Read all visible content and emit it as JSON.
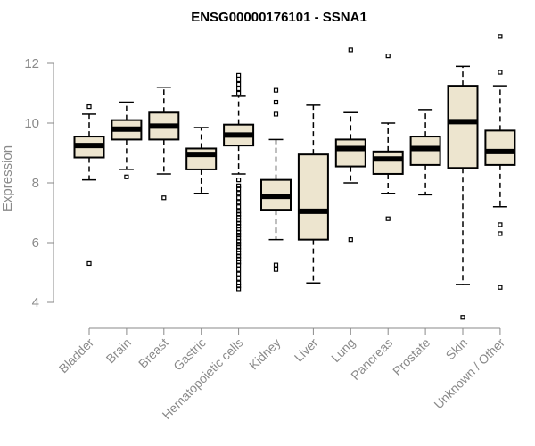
{
  "chart_data": {
    "type": "boxplot",
    "title": "ENSG00000176101 - SSNA1",
    "xlabel": "",
    "ylabel": "Expression",
    "ylim": [
      3.4,
      13.0
    ],
    "yticks": [
      4,
      6,
      8,
      10,
      12
    ],
    "box_fill": "#ede5cf",
    "categories": [
      "Bladder",
      "Brain",
      "Breast",
      "Gastric",
      "Hematopoietic cells",
      "Kidney",
      "Liver",
      "Lung",
      "Pancreas",
      "Prostate",
      "Skin",
      "Unknown / Other"
    ],
    "boxes": [
      {
        "name": "Bladder",
        "whislo": 8.1,
        "q1": 8.85,
        "med": 9.25,
        "q3": 9.55,
        "whishi": 10.3,
        "fliers": [
          10.55,
          5.3
        ]
      },
      {
        "name": "Brain",
        "whislo": 8.45,
        "q1": 9.45,
        "med": 9.8,
        "q3": 10.1,
        "whishi": 10.7,
        "fliers": [
          8.2
        ]
      },
      {
        "name": "Breast",
        "whislo": 8.3,
        "q1": 9.45,
        "med": 9.9,
        "q3": 10.35,
        "whishi": 11.2,
        "fliers": [
          7.5
        ]
      },
      {
        "name": "Gastric",
        "whislo": 7.65,
        "q1": 8.45,
        "med": 8.95,
        "q3": 9.15,
        "whishi": 9.85,
        "fliers": []
      },
      {
        "name": "Hematopoietic cells",
        "whislo": 8.3,
        "q1": 9.25,
        "med": 9.6,
        "q3": 9.95,
        "whishi": 10.9,
        "fliers": [
          11.6,
          11.45,
          11.3,
          11.15,
          11.0,
          8.1,
          7.9,
          7.8,
          7.65,
          7.5,
          7.35,
          7.2,
          7.05,
          6.95,
          6.85,
          6.75,
          6.65,
          6.55,
          6.45,
          6.35,
          6.25,
          6.15,
          6.05,
          5.95,
          5.85,
          5.75,
          5.65,
          5.55,
          5.45,
          5.35,
          5.25,
          5.1,
          4.95,
          4.8,
          4.65,
          4.55,
          4.45
        ]
      },
      {
        "name": "Kidney",
        "whislo": 6.1,
        "q1": 7.1,
        "med": 7.55,
        "q3": 8.1,
        "whishi": 9.45,
        "fliers": [
          11.1,
          10.7,
          10.3,
          5.25,
          5.1
        ]
      },
      {
        "name": "Liver",
        "whislo": 4.65,
        "q1": 6.1,
        "med": 7.05,
        "q3": 8.95,
        "whishi": 10.6,
        "fliers": []
      },
      {
        "name": "Lung",
        "whislo": 8.0,
        "q1": 8.55,
        "med": 9.15,
        "q3": 9.45,
        "whishi": 10.35,
        "fliers": [
          12.45,
          6.1
        ]
      },
      {
        "name": "Pancreas",
        "whislo": 7.65,
        "q1": 8.3,
        "med": 8.8,
        "q3": 9.05,
        "whishi": 10.0,
        "fliers": [
          12.25,
          6.8
        ]
      },
      {
        "name": "Prostate",
        "whislo": 7.6,
        "q1": 8.6,
        "med": 9.15,
        "q3": 9.55,
        "whishi": 10.45,
        "fliers": []
      },
      {
        "name": "Skin",
        "whislo": 4.6,
        "q1": 8.5,
        "med": 10.05,
        "q3": 11.25,
        "whishi": 11.9,
        "fliers": [
          3.5
        ]
      },
      {
        "name": "Unknown / Other",
        "whislo": 7.2,
        "q1": 8.6,
        "med": 9.05,
        "q3": 9.75,
        "whishi": 11.25,
        "fliers": [
          12.9,
          11.7,
          6.6,
          6.3,
          4.5
        ]
      }
    ]
  }
}
